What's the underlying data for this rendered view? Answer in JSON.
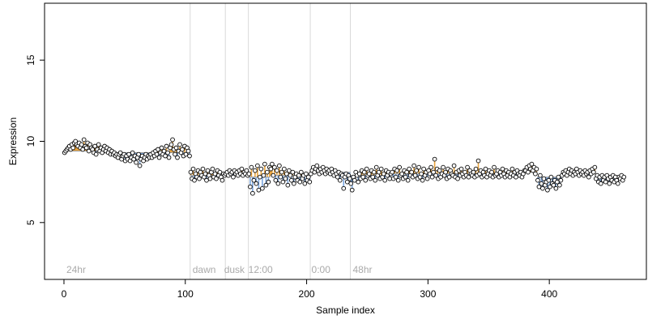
{
  "chart_data": {
    "type": "scatter",
    "xlabel": "Sample index",
    "ylabel": "Expression",
    "xlim": [
      -16,
      480
    ],
    "ylim": [
      1.5,
      18.5
    ],
    "x_ticks": [
      0,
      100,
      200,
      300,
      400
    ],
    "y_ticks": [
      5,
      10,
      15
    ],
    "grid": false,
    "point_fill": "#ffffff",
    "point_stroke": "#000000",
    "segment_colors": {
      "above_baseline": "#e8a33c",
      "below_baseline": "#7aa6df"
    },
    "separator_color": "#d9d9d9",
    "annotation_color": "#aaaaaa",
    "annotations": [
      {
        "label": "24hr",
        "x": 2
      },
      {
        "label": "dawn",
        "x": 106
      },
      {
        "label": "dusk",
        "x": 132
      },
      {
        "label": "12:00",
        "x": 152
      },
      {
        "label": "0:00",
        "x": 204
      },
      {
        "label": "48hr",
        "x": 238
      }
    ],
    "separators": [
      104,
      133,
      152,
      203,
      236
    ],
    "segments": [
      {
        "start": 0,
        "end": 40,
        "baseline": 9.4,
        "values": [
          9.3,
          9.4,
          9.5,
          9.6,
          9.7,
          9.5,
          9.8,
          9.6,
          9.9,
          10.0,
          9.8,
          9.7,
          9.9,
          9.6,
          9.8,
          9.5,
          10.1,
          9.7,
          9.6,
          9.9,
          9.4,
          9.8,
          9.6,
          9.5,
          9.3,
          9.7,
          9.2,
          9.5,
          9.8,
          9.4,
          9.6,
          9.3,
          9.5,
          9.7,
          9.4,
          9.6,
          9.3,
          9.5,
          9.2,
          9.4
        ]
      },
      {
        "start": 40,
        "end": 72,
        "baseline": 9.3,
        "values": [
          9.2,
          9.3,
          9.1,
          9.2,
          9.0,
          9.2,
          9.3,
          8.9,
          9.1,
          9.2,
          8.8,
          9.1,
          8.9,
          9.2,
          8.8,
          9.0,
          9.3,
          8.9,
          9.1,
          8.7,
          9.0,
          9.2,
          8.5,
          8.9,
          9.1,
          8.8,
          9.0,
          9.2,
          8.9,
          9.1,
          9.0,
          9.2
        ]
      },
      {
        "start": 72,
        "end": 104,
        "baseline": 9.3,
        "values": [
          9.0,
          9.3,
          9.1,
          9.4,
          9.2,
          9.5,
          9.0,
          9.3,
          9.6,
          9.2,
          9.4,
          9.1,
          9.7,
          9.3,
          9.0,
          9.6,
          9.8,
          10.1,
          9.5,
          9.2,
          9.6,
          9.0,
          9.4,
          9.8,
          9.3,
          9.5,
          9.1,
          9.7,
          9.2,
          9.6,
          9.4,
          9.1
        ]
      },
      {
        "start": 104,
        "end": 133,
        "baseline": 7.9,
        "values": [
          8.1,
          7.7,
          8.3,
          7.6,
          8.0,
          7.8,
          8.2,
          7.7,
          8.1,
          7.9,
          8.3,
          7.8,
          8.0,
          7.6,
          8.2,
          7.9,
          7.7,
          8.1,
          8.3,
          7.8,
          8.0,
          7.7,
          8.2,
          7.9,
          8.1,
          7.8,
          7.6,
          8.0,
          7.9
        ]
      },
      {
        "start": 133,
        "end": 152,
        "baseline": 8.0,
        "values": [
          8.0,
          8.1,
          7.9,
          8.2,
          8.0,
          8.1,
          7.8,
          8.2,
          8.0,
          8.1,
          7.9,
          8.2,
          8.0,
          8.3,
          7.9,
          8.1,
          8.0,
          8.2,
          7.9
        ]
      },
      {
        "start": 152,
        "end": 170,
        "baseline": 7.8,
        "values": [
          8.0,
          7.2,
          8.4,
          6.8,
          7.6,
          8.2,
          7.4,
          8.5,
          7.0,
          7.8,
          8.3,
          7.1,
          7.9,
          8.6,
          7.3,
          8.1,
          7.5,
          8.4
        ]
      },
      {
        "start": 170,
        "end": 203,
        "baseline": 7.9,
        "values": [
          8.3,
          8.6,
          7.9,
          8.4,
          7.6,
          8.2,
          7.4,
          8.5,
          7.8,
          8.1,
          7.5,
          8.3,
          7.7,
          8.0,
          7.3,
          8.2,
          7.9,
          7.6,
          8.1,
          7.4,
          7.8,
          8.0,
          7.6,
          7.9,
          7.5,
          8.1,
          7.7,
          7.9,
          7.4,
          8.0,
          7.6,
          7.8,
          7.5
        ]
      },
      {
        "start": 203,
        "end": 236,
        "baseline": 8.1,
        "values": [
          8.0,
          8.2,
          8.4,
          8.1,
          8.3,
          8.5,
          8.2,
          8.0,
          8.3,
          8.1,
          8.4,
          8.2,
          8.0,
          8.3,
          8.1,
          8.2,
          8.0,
          8.3,
          8.1,
          7.9,
          8.2,
          8.0,
          7.8,
          8.1,
          7.6,
          8.0,
          7.9,
          7.1,
          7.8,
          8.0,
          7.5,
          7.9,
          7.7
        ]
      },
      {
        "start": 236,
        "end": 270,
        "baseline": 7.9,
        "values": [
          7.4,
          7.0,
          7.8,
          7.6,
          8.1,
          7.9,
          7.5,
          8.0,
          7.7,
          8.2,
          7.8,
          8.1,
          7.6,
          8.3,
          7.9,
          8.0,
          7.7,
          8.2,
          7.8,
          8.1,
          7.6,
          8.4,
          7.9,
          8.1,
          7.7,
          8.3,
          7.8,
          8.0,
          7.6,
          8.2,
          7.9,
          8.1,
          7.7,
          8.0
        ]
      },
      {
        "start": 270,
        "end": 380,
        "baseline": 8.0,
        "values": [
          8.1,
          7.7,
          8.3,
          7.8,
          8.2,
          7.6,
          8.4,
          7.9,
          8.0,
          7.7,
          8.2,
          7.8,
          8.1,
          7.6,
          8.3,
          7.9,
          8.1,
          7.8,
          8.5,
          7.9,
          8.2,
          7.7,
          8.4,
          7.8,
          8.0,
          7.6,
          8.3,
          7.9,
          8.1,
          7.7,
          8.2,
          8.0,
          8.4,
          7.8,
          8.1,
          8.9,
          7.9,
          8.3,
          7.7,
          8.2,
          7.8,
          8.0,
          8.4,
          7.9,
          8.1,
          7.7,
          8.3,
          7.8,
          8.2,
          8.0,
          7.9,
          8.5,
          7.8,
          8.1,
          7.7,
          8.2,
          7.9,
          8.3,
          8.0,
          7.8,
          8.1,
          7.9,
          8.4,
          7.8,
          8.2,
          8.0,
          7.9,
          8.1,
          7.8,
          8.3,
          7.9,
          8.8,
          8.0,
          8.2,
          7.8,
          8.1,
          7.9,
          8.3,
          7.8,
          8.0,
          8.2,
          7.9,
          8.1,
          7.8,
          8.4,
          7.9,
          8.0,
          8.2,
          7.8,
          8.1,
          7.9,
          8.3,
          8.0,
          7.8,
          8.2,
          7.9,
          8.1,
          7.8,
          8.0,
          8.3,
          7.9,
          8.1,
          7.8,
          8.2,
          8.0,
          7.9,
          8.1,
          7.8,
          8.0,
          8.2
        ]
      },
      {
        "start": 380,
        "end": 390,
        "baseline": 8.1,
        "values": [
          8.2,
          8.4,
          8.1,
          8.5,
          8.3,
          8.6,
          8.2,
          8.4,
          8.0,
          8.3
        ]
      },
      {
        "start": 390,
        "end": 410,
        "baseline": 7.8,
        "values": [
          7.6,
          7.2,
          7.9,
          7.4,
          7.1,
          7.7,
          7.3,
          7.5,
          7.0,
          7.6,
          7.2,
          7.8,
          7.4,
          7.3,
          7.6,
          7.1,
          7.5,
          7.8,
          7.3,
          7.6
        ]
      },
      {
        "start": 410,
        "end": 438,
        "baseline": 8.0,
        "values": [
          7.9,
          8.1,
          8.0,
          8.2,
          7.9,
          8.1,
          8.3,
          8.0,
          8.2,
          7.9,
          8.1,
          8.0,
          8.3,
          8.1,
          7.9,
          8.2,
          8.0,
          8.1,
          7.9,
          8.2,
          8.0,
          8.1,
          7.8,
          8.2,
          8.0,
          8.3,
          8.1,
          8.4
        ]
      },
      {
        "start": 438,
        "end": 462,
        "baseline": 7.9,
        "values": [
          7.7,
          7.9,
          7.5,
          7.8,
          7.4,
          7.9,
          7.6,
          7.8,
          7.5,
          7.9,
          7.7,
          7.4,
          7.8,
          7.6,
          7.9,
          7.5,
          7.8,
          7.6,
          7.4,
          7.8,
          7.7,
          7.9,
          7.6,
          7.8
        ]
      }
    ]
  }
}
